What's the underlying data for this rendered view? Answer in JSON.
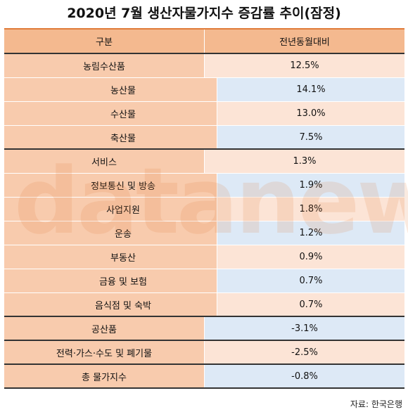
{
  "header": {
    "title": "2020년 7월 생산자물가지수 증감률 추이(잠정)"
  },
  "table": {
    "columns": [
      "구분",
      "전년동월대비"
    ],
    "groups": [
      {
        "label": "농림수산품",
        "value": "12.5%",
        "children": [
          {
            "label": "농산물",
            "value": "14.1%"
          },
          {
            "label": "수산물",
            "value": "13.0%"
          },
          {
            "label": "축산물",
            "value": "7.5%"
          }
        ]
      },
      {
        "label": "서비스",
        "value": "1.3%",
        "children": [
          {
            "label": "정보통신 및 방송",
            "value": "1.9%"
          },
          {
            "label": "사업지원",
            "value": "1.8%"
          },
          {
            "label": "운송",
            "value": "1.2%"
          },
          {
            "label": "부동산",
            "value": "0.9%"
          },
          {
            "label": "금융 및 보험",
            "value": "0.7%"
          },
          {
            "label": "음식점 및 숙박",
            "value": "0.7%"
          }
        ]
      },
      {
        "label": "공산품",
        "value": "-3.1%",
        "children": []
      },
      {
        "label": "전력·가스·수도 및 폐기물",
        "value": "-2.5%",
        "children": []
      },
      {
        "label": "총 물가지수",
        "value": "-0.8%",
        "children": []
      }
    ]
  },
  "watermark": "datanews",
  "source": "자료: 한국은행"
}
